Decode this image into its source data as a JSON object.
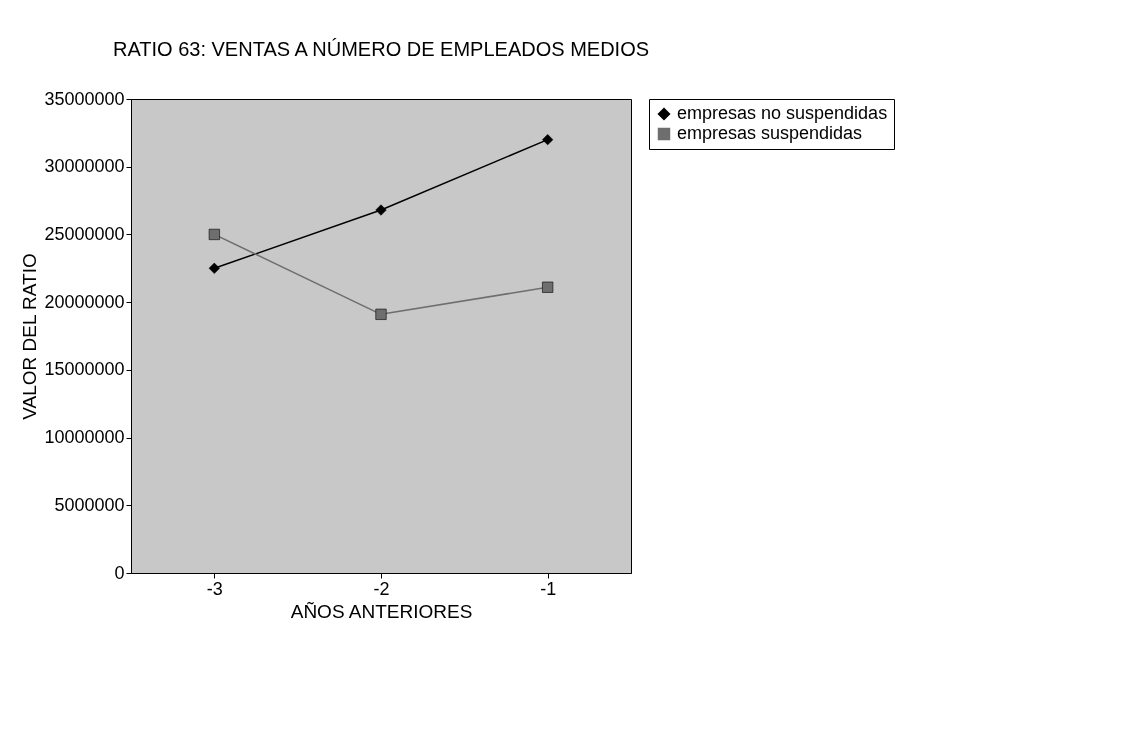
{
  "chart_data": {
    "type": "line",
    "title": "RATIO 63:  VENTAS A NÚMERO DE EMPLEADOS MEDIOS",
    "xlabel": "AÑOS ANTERIORES",
    "ylabel": "VALOR DEL RATIO",
    "categories": [
      "-3",
      "-2",
      "-1"
    ],
    "series": [
      {
        "name": "empresas no suspendidas",
        "color": "#000000",
        "marker": "diamond",
        "values": [
          22500000,
          26800000,
          32000000
        ]
      },
      {
        "name": "empresas suspendidas",
        "color": "#6e6e6e",
        "marker": "square",
        "values": [
          25000000,
          19100000,
          21100000
        ]
      }
    ],
    "ylim": [
      0,
      35000000
    ],
    "yticks": [
      0,
      5000000,
      10000000,
      15000000,
      20000000,
      25000000,
      30000000,
      35000000
    ],
    "grid": false,
    "legend": "right",
    "line_style": "solid"
  }
}
